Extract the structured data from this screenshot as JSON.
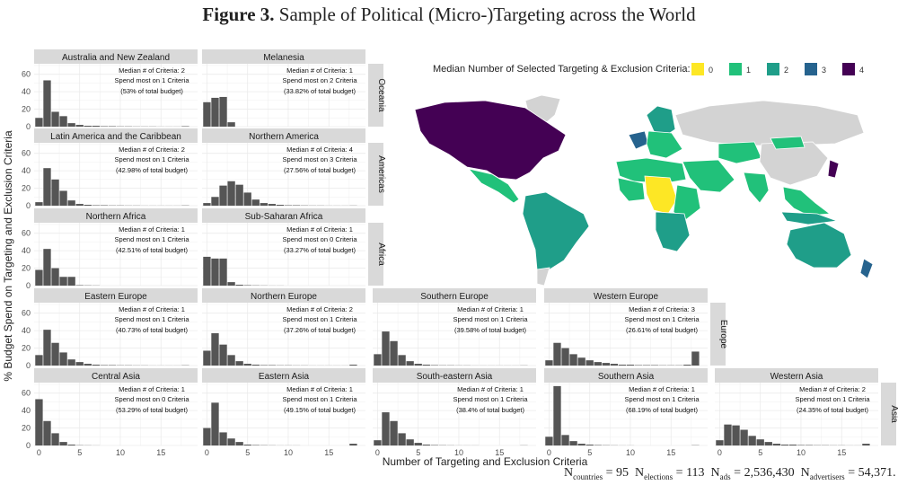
{
  "title": {
    "figure_label": "Figure 3.",
    "text": "Sample of Political (Micro-)Targeting across the World"
  },
  "footnote": {
    "countries": {
      "label": "N",
      "sub": "countries",
      "value": "95"
    },
    "elections": {
      "label": "N",
      "sub": "elections",
      "value": "113"
    },
    "ads": {
      "label": "N",
      "sub": "ads",
      "value": "2,536,430"
    },
    "advertisers": {
      "label": "N",
      "sub": "advertisers",
      "value": "54,371."
    }
  },
  "map_legend": {
    "title": "Median Number of Selected Targeting & Exclusion Criteria:",
    "entries": [
      {
        "label": "0",
        "color": "#fde725"
      },
      {
        "label": "1",
        "color": "#21c17a"
      },
      {
        "label": "2",
        "color": "#1f9e89"
      },
      {
        "label": "3",
        "color": "#26638e"
      },
      {
        "label": "4",
        "color": "#440154"
      }
    ],
    "no_data_color": "#d3d3d3"
  },
  "chart_data": {
    "type": "bar",
    "ylabel": "% Budget Spend on Targeting and Exclusion Criteria",
    "xlabel": "Number of Targeting and Exclusion Criteria",
    "x": [
      0,
      1,
      2,
      3,
      4,
      5,
      6,
      7,
      8,
      9,
      10,
      11,
      12,
      13,
      14,
      15,
      16,
      17,
      18
    ],
    "xticks": [
      0,
      5,
      10,
      15
    ],
    "yticks": [
      0,
      20,
      40,
      60
    ],
    "ylim": [
      0,
      72
    ],
    "xlim": [
      -0.6,
      19.5
    ],
    "bar_color": "#555555",
    "grid": true,
    "annotation_template": {
      "median": "Median # of Criteria: ",
      "spend_prefix": "Spend most on ",
      "spend_suffix": " Criteria"
    },
    "groups": [
      {
        "label": "Oceania",
        "row": 0
      },
      {
        "label": "Americas",
        "row": 1
      },
      {
        "label": "Africa",
        "row": 2
      },
      {
        "label": "Europe",
        "row": 3
      },
      {
        "label": "Asia",
        "row": 4
      }
    ],
    "panels": [
      {
        "name": "Australia and New Zealand",
        "row": 0,
        "col": 0,
        "median": "2",
        "mode": "1",
        "share": "(53% of total budget)",
        "values": [
          10,
          53,
          17,
          12,
          4,
          2,
          1,
          1,
          0.5,
          0.5,
          0.3,
          0.3,
          0.2,
          0.2,
          0.2,
          0.1,
          0.1,
          0.1,
          0.5
        ]
      },
      {
        "name": "Melanesia",
        "row": 0,
        "col": 1,
        "median": "1",
        "mode": "2",
        "share": "(33.82% of total budget)",
        "values": [
          28,
          33,
          34,
          5,
          0,
          0,
          0,
          0,
          0,
          0,
          0,
          0,
          0,
          0,
          0,
          0,
          0,
          0,
          0
        ]
      },
      {
        "name": "Latin America and the Caribbean",
        "row": 1,
        "col": 0,
        "median": "2",
        "mode": "1",
        "share": "(42.98% of total budget)",
        "values": [
          4,
          43,
          30,
          17,
          6,
          2,
          1,
          0.5,
          0.5,
          0.3,
          0.3,
          0.2,
          0.2,
          0.1,
          0.1,
          0.1,
          0.1,
          0.1,
          0.3
        ]
      },
      {
        "name": "Northern America",
        "row": 1,
        "col": 1,
        "median": "4",
        "mode": "3",
        "share": "(27.56% of total budget)",
        "values": [
          3,
          10,
          23,
          28,
          24,
          15,
          7,
          3,
          2,
          1,
          0.5,
          0.5,
          0.3,
          0.2,
          0.2,
          0.1,
          0.1,
          0.1,
          0.2
        ]
      },
      {
        "name": "Northern Africa",
        "row": 2,
        "col": 0,
        "median": "1",
        "mode": "1",
        "share": "(42.51% of total budget)",
        "values": [
          18,
          42,
          20,
          10,
          10,
          0.5,
          0.3,
          0.2,
          0,
          0,
          0,
          0,
          0,
          0,
          0,
          0,
          0,
          0,
          0
        ]
      },
      {
        "name": "Sub-Saharan Africa",
        "row": 2,
        "col": 1,
        "median": "1",
        "mode": "0",
        "share": "(33.27% of total budget)",
        "values": [
          33,
          31,
          31,
          4,
          1,
          0.5,
          0.3,
          0.2,
          0.1,
          0.1,
          0,
          0,
          0,
          0,
          0,
          0,
          0,
          0,
          0
        ]
      },
      {
        "name": "Eastern Europe",
        "row": 3,
        "col": 0,
        "median": "1",
        "mode": "1",
        "share": "(40.73% of total budget)",
        "values": [
          12,
          41,
          26,
          15,
          7,
          4,
          2,
          1,
          0.5,
          0.5,
          0.3,
          0.3,
          0.2,
          0.2,
          0.1,
          0.1,
          0.1,
          0.1,
          0.3
        ]
      },
      {
        "name": "Northern Europe",
        "row": 3,
        "col": 1,
        "median": "2",
        "mode": "1",
        "share": "(37.26% of total budget)",
        "values": [
          17,
          37,
          24,
          12,
          5,
          2,
          1,
          0.5,
          0.5,
          0.3,
          0.3,
          0.2,
          0.2,
          0.1,
          0.1,
          0.1,
          0.1,
          0.1,
          1
        ]
      },
      {
        "name": "Southern Europe",
        "row": 3,
        "col": 2,
        "median": "1",
        "mode": "1",
        "share": "(39.58% of total budget)",
        "values": [
          13,
          39,
          28,
          12,
          5,
          2,
          1,
          0.5,
          0.3,
          0.3,
          0.2,
          0.2,
          0.1,
          0.1,
          0.1,
          0.1,
          0.1,
          0.1,
          0.2
        ]
      },
      {
        "name": "Western Europe",
        "row": 3,
        "col": 3,
        "median": "3",
        "mode": "1",
        "share": "(26.61% of total budget)",
        "values": [
          6,
          26,
          20,
          13,
          9,
          6,
          4,
          3,
          2,
          1,
          1,
          0.5,
          0.5,
          0.5,
          0.3,
          0.3,
          0.3,
          1,
          16
        ]
      },
      {
        "name": "Central Asia",
        "row": 4,
        "col": 0,
        "median": "1",
        "mode": "0",
        "share": "(53.29% of total budget)",
        "values": [
          53,
          28,
          14,
          4,
          1,
          0.3,
          0.2,
          0.1,
          0,
          0,
          0,
          0,
          0,
          0,
          0,
          0,
          0,
          0,
          0
        ]
      },
      {
        "name": "Eastern Asia",
        "row": 4,
        "col": 1,
        "median": "1",
        "mode": "1",
        "share": "(49.15% of total budget)",
        "values": [
          20,
          49,
          15,
          8,
          4,
          1,
          0.5,
          0.3,
          0.2,
          0.1,
          0.1,
          0.1,
          0,
          0,
          0,
          0,
          0,
          0,
          2
        ]
      },
      {
        "name": "South-eastern Asia",
        "row": 4,
        "col": 2,
        "median": "1",
        "mode": "1",
        "share": "(38.4% of total budget)",
        "values": [
          6,
          38,
          28,
          14,
          7,
          3,
          1,
          0.5,
          0.3,
          0.2,
          0.1,
          0.1,
          0.1,
          0,
          0,
          0,
          0,
          0,
          0.2
        ]
      },
      {
        "name": "Southern Asia",
        "row": 4,
        "col": 3,
        "median": "1",
        "mode": "1",
        "share": "(68.19% of total budget)",
        "values": [
          10,
          68,
          12,
          5,
          2,
          1,
          0.5,
          0.3,
          0.2,
          0.1,
          0.1,
          0,
          0,
          0,
          0,
          0,
          0,
          0,
          0.3
        ]
      },
      {
        "name": "Western Asia",
        "row": 4,
        "col": 4,
        "median": "2",
        "mode": "1",
        "share": "(24.35% of total budget)",
        "values": [
          6,
          24,
          23,
          18,
          11,
          7,
          4,
          2,
          1,
          1,
          0.5,
          0.5,
          0.3,
          0.3,
          0.2,
          0.2,
          0.1,
          0.1,
          2
        ]
      }
    ]
  }
}
